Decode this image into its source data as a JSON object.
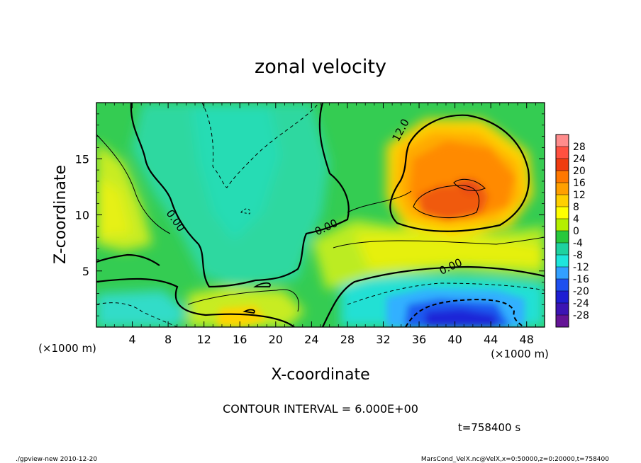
{
  "chart_data": {
    "type": "heatmap",
    "title": "zonal velocity",
    "xlabel": "X-coordinate",
    "ylabel": "Z-coordinate",
    "x_unit": "(×1000 m)",
    "y_unit": "(×1000 m)",
    "xlim": [
      0,
      50
    ],
    "ylim": [
      0,
      20
    ],
    "x_ticks": [
      4,
      8,
      12,
      16,
      20,
      24,
      28,
      32,
      36,
      40,
      44,
      48
    ],
    "y_ticks": [
      5,
      10,
      15
    ],
    "colorbar": {
      "labels": [
        "28",
        "24",
        "20",
        "16",
        "12",
        "8",
        "4",
        "0",
        "-4",
        "-8",
        "-12",
        "-16",
        "-20",
        "-24",
        "-28"
      ],
      "colors": [
        "#ff8c8c",
        "#ff5040",
        "#f03c10",
        "#ff7800",
        "#ffa000",
        "#ffd000",
        "#ffff00",
        "#b4f000",
        "#28c83c",
        "#1ed2a0",
        "#1ee6dc",
        "#32a0ff",
        "#1e50f0",
        "#1e1ed2",
        "#3c14b4",
        "#641496"
      ]
    },
    "contour_labels": [
      {
        "text": "0.00",
        "x": 8.5,
        "y": 9.3
      },
      {
        "text": "0.00",
        "x": 25.8,
        "y": 8.6
      },
      {
        "text": "0.00",
        "x": 39.7,
        "y": 5.1
      },
      {
        "text": "12.0",
        "x": 34.3,
        "y": 17.4
      }
    ],
    "contour_interval_text": "CONTOUR INTERVAL = 6.000E+00",
    "time_text": "t=758400  s"
  },
  "footer": {
    "left": "./gpview-new   2010-12-20",
    "right": "MarsCond_VelX.nc@VelX,x=0:50000,z=0:20000,t=758400"
  }
}
